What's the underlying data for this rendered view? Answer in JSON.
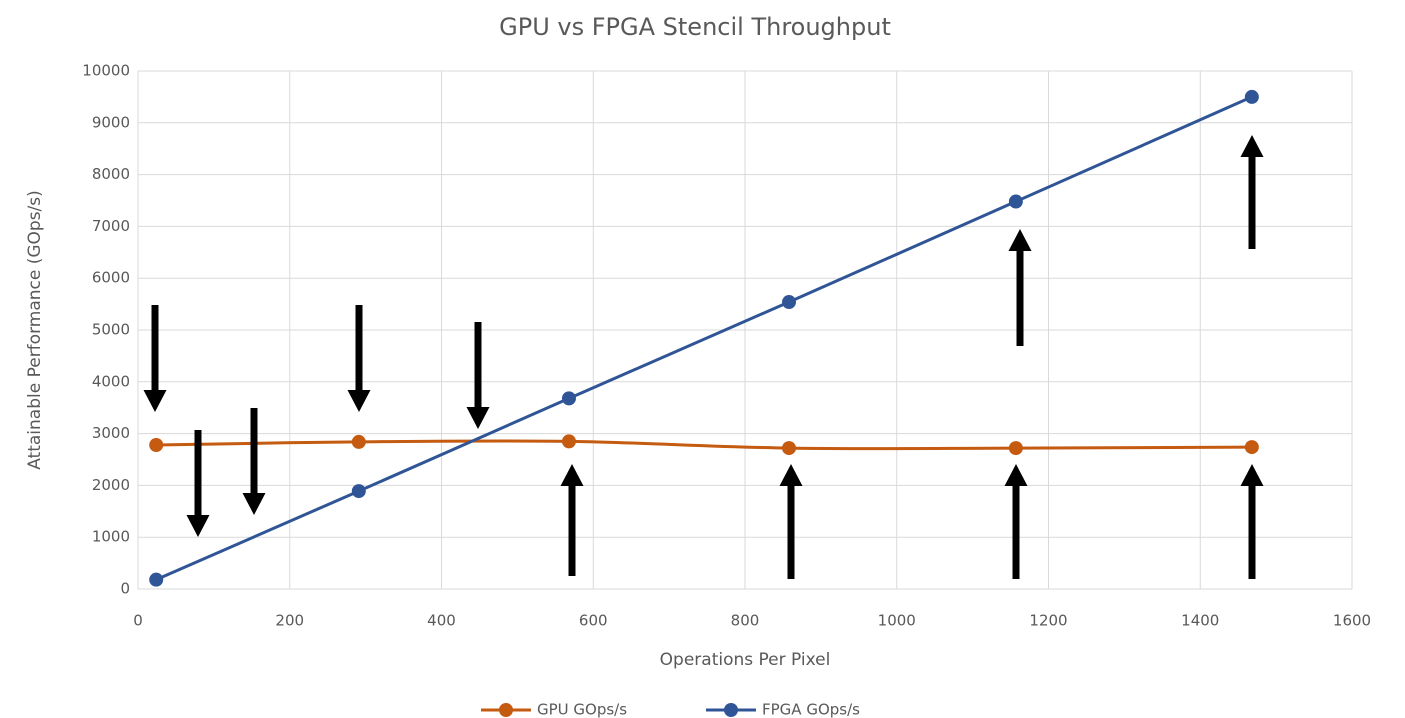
{
  "chart_data": {
    "type": "line",
    "title": "GPU vs FPGA Stencil Throughput",
    "xlabel": "Operations Per Pixel",
    "ylabel": "Attainable Performance (GOps/s)",
    "xlim": [
      0,
      1600
    ],
    "xticks": [
      0,
      200,
      400,
      600,
      800,
      1000,
      1200,
      1400,
      1600
    ],
    "ylim": [
      0,
      10000
    ],
    "yticks": [
      0,
      1000,
      2000,
      3000,
      4000,
      5000,
      6000,
      7000,
      8000,
      9000,
      10000
    ],
    "grid": true,
    "legend": "bottom",
    "series": [
      {
        "name": "GPU GOps/s",
        "color": "#c55a11",
        "smooth": true,
        "x": [
          24,
          291,
          568,
          858,
          1157,
          1468
        ],
        "values": [
          2780,
          2840,
          2850,
          2720,
          2720,
          2740
        ]
      },
      {
        "name": "FPGA GOps/s",
        "color": "#2f5597",
        "smooth": false,
        "x": [
          24,
          291,
          568,
          858,
          1157,
          1468
        ],
        "values": [
          180,
          1890,
          3680,
          5540,
          7480,
          9500
        ]
      }
    ]
  }
}
